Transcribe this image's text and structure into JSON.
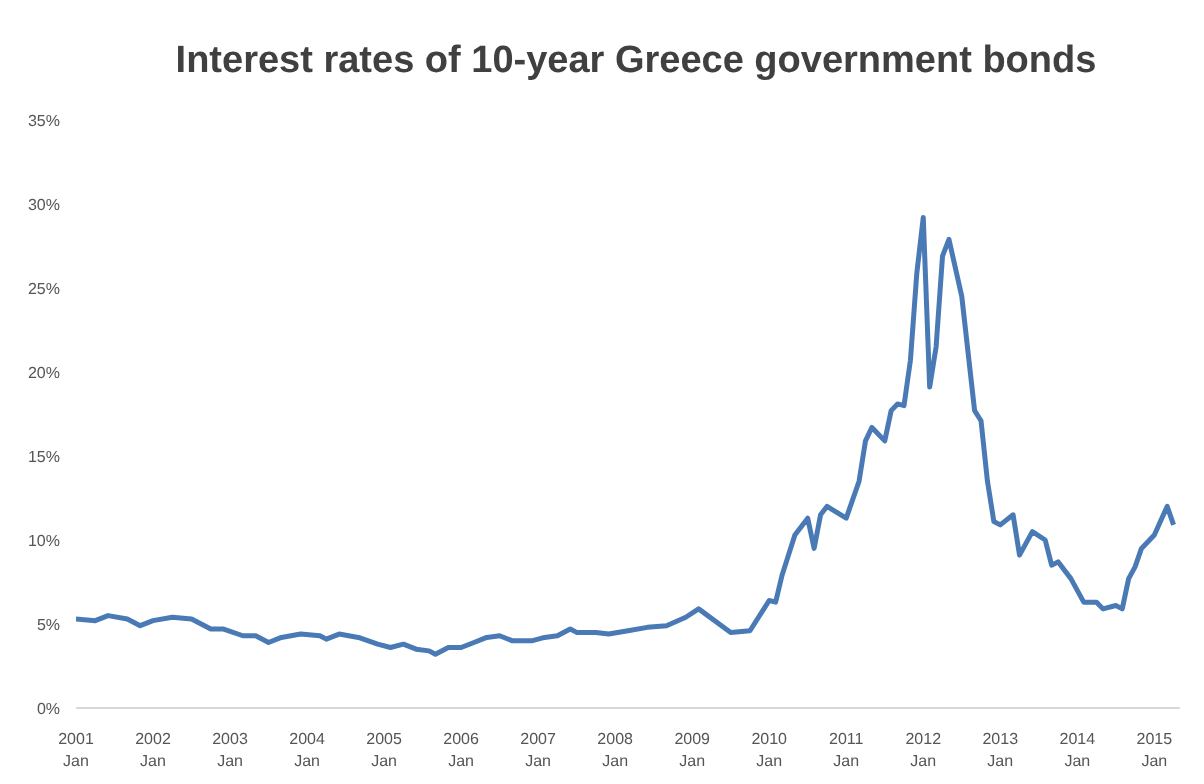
{
  "chart_data": {
    "type": "line",
    "title": "Interest rates of 10-year Greece government bonds",
    "x": [
      "2001-01",
      "2001-04",
      "2001-06",
      "2001-09",
      "2001-11",
      "2002-01",
      "2002-04",
      "2002-07",
      "2002-10",
      "2002-12",
      "2003-03",
      "2003-05",
      "2003-07",
      "2003-09",
      "2003-12",
      "2004-03",
      "2004-04",
      "2004-06",
      "2004-09",
      "2004-12",
      "2005-02",
      "2005-04",
      "2005-06",
      "2005-08",
      "2005-09",
      "2005-11",
      "2006-01",
      "2006-03",
      "2006-05",
      "2006-07",
      "2006-09",
      "2006-12",
      "2007-02",
      "2007-04",
      "2007-06",
      "2007-07",
      "2007-10",
      "2007-12",
      "2008-03",
      "2008-06",
      "2008-09",
      "2008-12",
      "2009-02",
      "2009-07",
      "2009-10",
      "2010-01",
      "2010-02",
      "2010-03",
      "2010-05",
      "2010-07",
      "2010-08",
      "2010-09",
      "2010-10",
      "2011-01",
      "2011-03",
      "2011-04",
      "2011-05",
      "2011-07",
      "2011-08",
      "2011-09",
      "2011-10",
      "2011-11",
      "2011-12",
      "2012-01",
      "2012-02",
      "2012-03",
      "2012-04",
      "2012-05",
      "2012-07",
      "2012-09",
      "2012-10",
      "2012-11",
      "2012-12",
      "2013-01",
      "2013-03",
      "2013-04",
      "2013-06",
      "2013-08",
      "2013-09",
      "2013-10",
      "2013-12",
      "2014-02",
      "2014-04",
      "2014-05",
      "2014-07",
      "2014-08",
      "2014-09",
      "2014-10",
      "2014-11",
      "2015-01",
      "2015-03",
      "2015-04"
    ],
    "series": [
      {
        "color": "#4a7ab5",
        "values": [
          5.3,
          5.2,
          5.5,
          5.3,
          4.9,
          5.2,
          5.4,
          5.3,
          4.7,
          4.7,
          4.3,
          4.3,
          3.9,
          4.2,
          4.4,
          4.3,
          4.1,
          4.4,
          4.2,
          3.8,
          3.6,
          3.8,
          3.5,
          3.4,
          3.2,
          3.6,
          3.6,
          3.9,
          4.2,
          4.3,
          4.0,
          4.0,
          4.2,
          4.3,
          4.7,
          4.5,
          4.5,
          4.4,
          4.6,
          4.8,
          4.9,
          5.4,
          5.9,
          4.5,
          4.6,
          6.4,
          6.3,
          7.9,
          10.3,
          11.3,
          9.5,
          11.5,
          12.0,
          11.3,
          13.5,
          15.9,
          16.7,
          15.9,
          17.7,
          18.1,
          18.0,
          20.7,
          25.9,
          29.2,
          19.1,
          21.5,
          26.9,
          27.9,
          24.5,
          17.7,
          17.1,
          13.5,
          11.1,
          10.9,
          11.5,
          9.1,
          10.5,
          10.0,
          8.5,
          8.7,
          7.7,
          6.3,
          6.3,
          5.9,
          6.1,
          5.9,
          7.7,
          8.4,
          9.5,
          10.3,
          12.0,
          10.9
        ]
      }
    ],
    "xlim": [
      "2001-01",
      "2015-05"
    ],
    "xticks": [
      {
        "value": "2001-01",
        "label": "2001\nJan"
      },
      {
        "value": "2002-01",
        "label": "2002\nJan"
      },
      {
        "value": "2003-01",
        "label": "2003\nJan"
      },
      {
        "value": "2004-01",
        "label": "2004\nJan"
      },
      {
        "value": "2005-01",
        "label": "2005\nJan"
      },
      {
        "value": "2006-01",
        "label": "2006\nJan"
      },
      {
        "value": "2007-01",
        "label": "2007\nJan"
      },
      {
        "value": "2008-01",
        "label": "2008\nJan"
      },
      {
        "value": "2009-01",
        "label": "2009\nJan"
      },
      {
        "value": "2010-01",
        "label": "2010\nJan"
      },
      {
        "value": "2011-01",
        "label": "2011\nJan"
      },
      {
        "value": "2012-01",
        "label": "2012\nJan"
      },
      {
        "value": "2013-01",
        "label": "2013\nJan"
      },
      {
        "value": "2014-01",
        "label": "2014\nJan"
      },
      {
        "value": "2015-01",
        "label": "2015\nJan"
      }
    ],
    "ylim": [
      0,
      35
    ],
    "yticks": [
      {
        "value": 0,
        "label": "0%"
      },
      {
        "value": 5,
        "label": "5%"
      },
      {
        "value": 10,
        "label": "10%"
      },
      {
        "value": 15,
        "label": "15%"
      },
      {
        "value": 20,
        "label": "20%"
      },
      {
        "value": 25,
        "label": "25%"
      },
      {
        "value": 30,
        "label": "30%"
      },
      {
        "value": 35,
        "label": "35%"
      }
    ],
    "grid": false,
    "legend": false,
    "marker": "none",
    "line_style": "solid"
  }
}
